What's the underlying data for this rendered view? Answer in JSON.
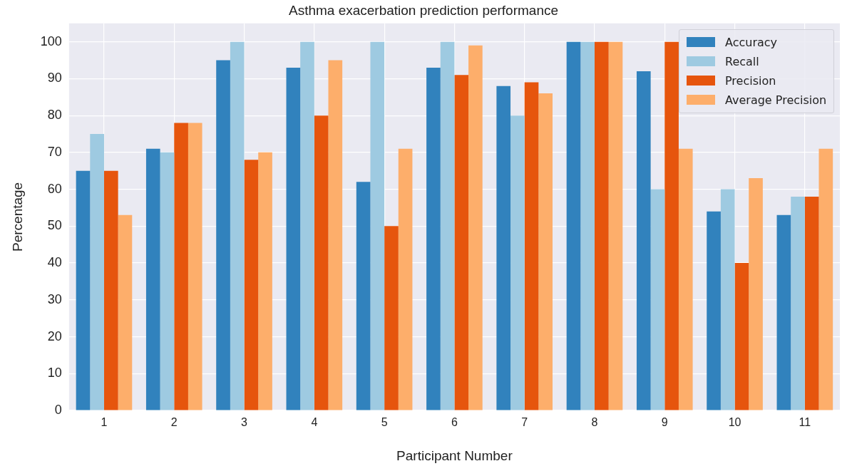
{
  "chart_data": {
    "type": "bar",
    "title": "Asthma exacerbation prediction performance",
    "xlabel": "Participant Number",
    "ylabel": "Percentage",
    "categories": [
      "1",
      "2",
      "3",
      "4",
      "5",
      "6",
      "7",
      "8",
      "9",
      "10",
      "11"
    ],
    "series": [
      {
        "name": "Accuracy",
        "color": "#3182bd",
        "values": [
          65,
          71,
          95,
          93,
          62,
          93,
          88,
          100,
          92,
          54,
          53
        ]
      },
      {
        "name": "Recall",
        "color": "#9ecae1",
        "values": [
          75,
          70,
          100,
          100,
          100,
          100,
          80,
          100,
          60,
          60,
          58
        ]
      },
      {
        "name": "Precision",
        "color": "#e6550d",
        "values": [
          65,
          78,
          68,
          80,
          50,
          91,
          89,
          100,
          100,
          40,
          58
        ]
      },
      {
        "name": "Average Precision",
        "color": "#fdae6b",
        "values": [
          53,
          78,
          70,
          95,
          71,
          99,
          86,
          100,
          71,
          63,
          71
        ]
      }
    ],
    "ylim": [
      0,
      105
    ],
    "yticks": [
      0,
      10,
      20,
      30,
      40,
      50,
      60,
      70,
      80,
      90,
      100
    ],
    "grid": true,
    "legend": "top right"
  }
}
